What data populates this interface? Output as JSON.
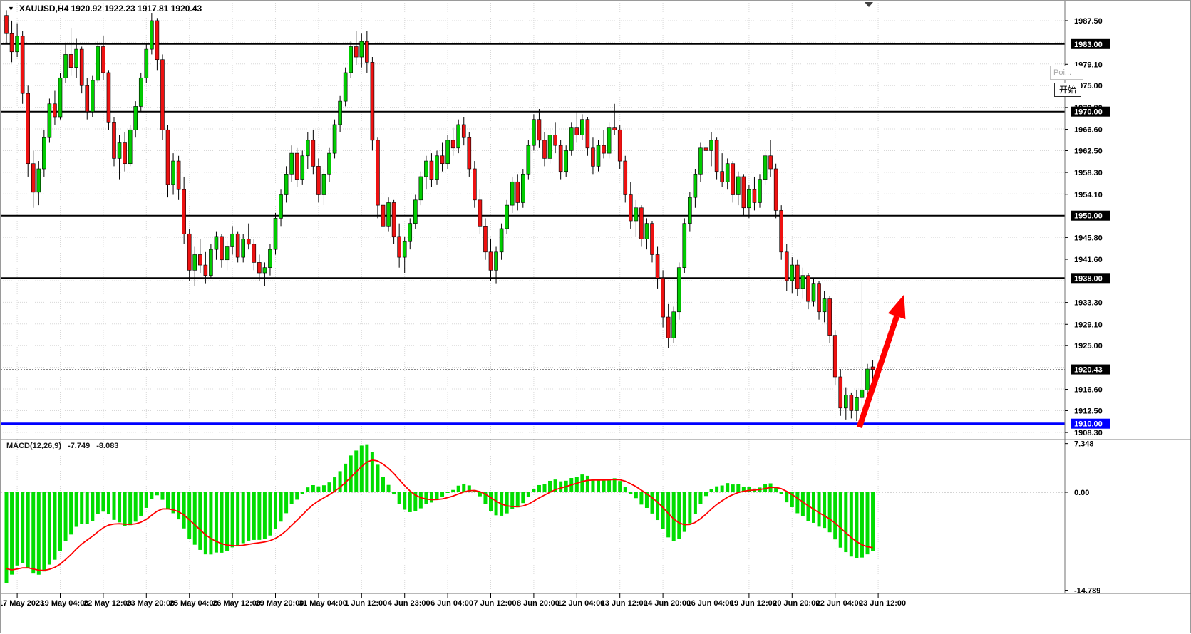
{
  "header": {
    "dropdown_icon": "▼",
    "title": "XAUUSD,H4 1920.92 1922.23 1917.81 1920.43"
  },
  "overlays": {
    "tooltip": "Poi...",
    "start_button": "开始"
  },
  "macd_panel": {
    "label": "MACD(12,26,9)",
    "main_value": "-7.749",
    "signal_value": "-8.083"
  },
  "colors": {
    "bull": "#00CC00",
    "bear": "#EE1111",
    "wick": "#000000",
    "hist": "#00DD00",
    "signal": "#FF0000",
    "arrow": "#FF0000",
    "hline_black": "#000000",
    "hline_blue": "#0000FF",
    "badge_current_bg": "#000000",
    "grid": "#d8d8d8"
  },
  "chart_data": {
    "type": "candlestick",
    "symbol": "XAUUSD",
    "timeframe": "H4",
    "current_ohlc": {
      "open": 1920.92,
      "high": 1922.23,
      "low": 1917.81,
      "close": 1920.43
    },
    "candles": [
      [
        1988.5,
        1989.5,
        1983,
        1985
      ],
      [
        1985,
        1987.5,
        1979.5,
        1981.5
      ],
      [
        1981.5,
        1987,
        1980.5,
        1984.5
      ],
      [
        1984.5,
        1985.5,
        1971.5,
        1973.5
      ],
      [
        1973.5,
        1975,
        1957.5,
        1960
      ],
      [
        1960,
        1962.5,
        1951.5,
        1954.5
      ],
      [
        1954.5,
        1960.5,
        1952,
        1959
      ],
      [
        1959,
        1966.5,
        1957.5,
        1965
      ],
      [
        1965,
        1972.5,
        1964,
        1971.5
      ],
      [
        1971.5,
        1974,
        1967.5,
        1969
      ],
      [
        1969,
        1977.5,
        1968.5,
        1976.5
      ],
      [
        1976.5,
        1983,
        1975.5,
        1981
      ],
      [
        1981,
        1986,
        1977,
        1978.5
      ],
      [
        1978.5,
        1984,
        1976.5,
        1982
      ],
      [
        1982,
        1982.5,
        1973.5,
        1975
      ],
      [
        1975,
        1976.5,
        1968.5,
        1970
      ],
      [
        1970,
        1977,
        1969,
        1976
      ],
      [
        1976,
        1983.5,
        1975.5,
        1982.5
      ],
      [
        1982.5,
        1984.5,
        1976,
        1977.5
      ],
      [
        1977.5,
        1978,
        1966.5,
        1968
      ],
      [
        1968,
        1969,
        1959.5,
        1961
      ],
      [
        1961,
        1965.5,
        1957,
        1964
      ],
      [
        1964,
        1966,
        1958.5,
        1960
      ],
      [
        1960,
        1967.5,
        1959.5,
        1966.5
      ],
      [
        1966.5,
        1972,
        1965,
        1971
      ],
      [
        1971,
        1977.5,
        1970,
        1976.5
      ],
      [
        1976.5,
        1983,
        1975.5,
        1982
      ],
      [
        1982,
        1989,
        1981,
        1987.5
      ],
      [
        1987.5,
        1988,
        1978,
        1980
      ],
      [
        1980,
        1981,
        1964.5,
        1966.5
      ],
      [
        1966.5,
        1967.5,
        1953.5,
        1956
      ],
      [
        1956,
        1962,
        1954,
        1960.5
      ],
      [
        1960.5,
        1961.5,
        1953,
        1955
      ],
      [
        1955,
        1957.5,
        1944.5,
        1946.5
      ],
      [
        1946.5,
        1947.5,
        1937.5,
        1939.5
      ],
      [
        1939.5,
        1944,
        1936.5,
        1942.5
      ],
      [
        1942.5,
        1945.5,
        1939,
        1940.5
      ],
      [
        1940.5,
        1943,
        1937,
        1938.5
      ],
      [
        1938.5,
        1944.5,
        1938,
        1943.5
      ],
      [
        1943.5,
        1947,
        1941.5,
        1946
      ],
      [
        1946,
        1946.5,
        1940,
        1941.5
      ],
      [
        1941.5,
        1945,
        1939.5,
        1944
      ],
      [
        1944,
        1948,
        1942.5,
        1946.5
      ],
      [
        1946.5,
        1947,
        1941,
        1942
      ],
      [
        1942,
        1946.5,
        1941,
        1945.5
      ],
      [
        1945.5,
        1948.5,
        1943.5,
        1944.5
      ],
      [
        1944.5,
        1945.5,
        1939.5,
        1941
      ],
      [
        1941,
        1942.5,
        1937.5,
        1939
      ],
      [
        1939,
        1941,
        1936.5,
        1940
      ],
      [
        1940,
        1944.5,
        1938.5,
        1943.5
      ],
      [
        1943.5,
        1950.5,
        1942.5,
        1949.5
      ],
      [
        1949.5,
        1955,
        1948,
        1954
      ],
      [
        1954,
        1959.5,
        1952.5,
        1958
      ],
      [
        1958,
        1963.5,
        1956.5,
        1962
      ],
      [
        1962,
        1963,
        1955.5,
        1957
      ],
      [
        1957,
        1962.5,
        1956,
        1961.5
      ],
      [
        1961.5,
        1966,
        1959,
        1964.5
      ],
      [
        1964.5,
        1966.5,
        1958,
        1959.5
      ],
      [
        1959.5,
        1961,
        1952.5,
        1954
      ],
      [
        1954,
        1959,
        1952,
        1958
      ],
      [
        1958,
        1963,
        1956.5,
        1962
      ],
      [
        1962,
        1968.5,
        1961,
        1967.5
      ],
      [
        1967.5,
        1973,
        1966,
        1972
      ],
      [
        1972,
        1978.5,
        1971,
        1977.5
      ],
      [
        1977.5,
        1983.5,
        1976.5,
        1982.5
      ],
      [
        1982.5,
        1985.5,
        1979,
        1980.5
      ],
      [
        1980.5,
        1985,
        1978.5,
        1983.5
      ],
      [
        1983.5,
        1985.5,
        1977.5,
        1979.5
      ],
      [
        1979.5,
        1980.5,
        1962.5,
        1964.5
      ],
      [
        1964.5,
        1965,
        1949.5,
        1952
      ],
      [
        1952,
        1956.5,
        1946,
        1948
      ],
      [
        1948,
        1953.5,
        1947,
        1952.5
      ],
      [
        1952.5,
        1953,
        1944.5,
        1946
      ],
      [
        1946,
        1948.5,
        1940,
        1942
      ],
      [
        1942,
        1946,
        1939,
        1945
      ],
      [
        1945,
        1949.5,
        1943.5,
        1948.5
      ],
      [
        1948.5,
        1954,
        1947.5,
        1953
      ],
      [
        1953,
        1958.5,
        1952,
        1957.5
      ],
      [
        1957.5,
        1961.5,
        1955,
        1960.5
      ],
      [
        1960.5,
        1962,
        1955.5,
        1957
      ],
      [
        1957,
        1962.5,
        1956,
        1961.5
      ],
      [
        1961.5,
        1964,
        1958.5,
        1960
      ],
      [
        1960,
        1965.5,
        1959,
        1964.5
      ],
      [
        1964.5,
        1967,
        1961.5,
        1963
      ],
      [
        1963,
        1968.5,
        1962,
        1967.5
      ],
      [
        1967.5,
        1969,
        1963.5,
        1965
      ],
      [
        1965,
        1966,
        1957.5,
        1959
      ],
      [
        1959,
        1960.5,
        1951.5,
        1953
      ],
      [
        1953,
        1955,
        1946.5,
        1948
      ],
      [
        1948,
        1949.5,
        1941.5,
        1943
      ],
      [
        1943,
        1945.5,
        1937.5,
        1939.5
      ],
      [
        1939.5,
        1944,
        1937,
        1943
      ],
      [
        1943,
        1948.5,
        1941.5,
        1947.5
      ],
      [
        1947.5,
        1953,
        1946.5,
        1952
      ],
      [
        1952,
        1957.5,
        1950.5,
        1956.5
      ],
      [
        1956.5,
        1958,
        1951,
        1952.5
      ],
      [
        1952.5,
        1959,
        1951.5,
        1958
      ],
      [
        1958,
        1964.5,
        1957,
        1963.5
      ],
      [
        1963.5,
        1969.5,
        1962.5,
        1968.5
      ],
      [
        1968.5,
        1970.5,
        1963,
        1964.5
      ],
      [
        1964.5,
        1966,
        1959.5,
        1961
      ],
      [
        1961,
        1966.5,
        1960,
        1965.5
      ],
      [
        1965.5,
        1968,
        1962,
        1963.5
      ],
      [
        1963.5,
        1964.5,
        1957,
        1958.5
      ],
      [
        1958.5,
        1963.5,
        1957.5,
        1962.5
      ],
      [
        1962.5,
        1968,
        1961.5,
        1967
      ],
      [
        1967,
        1970,
        1964,
        1965.5
      ],
      [
        1965.5,
        1969.5,
        1964.5,
        1968.5
      ],
      [
        1968.5,
        1969,
        1961.5,
        1963
      ],
      [
        1963,
        1965,
        1958,
        1959.5
      ],
      [
        1959.5,
        1964.5,
        1958.5,
        1963.5
      ],
      [
        1963.5,
        1966.5,
        1961,
        1962
      ],
      [
        1962,
        1968,
        1961,
        1967
      ],
      [
        1967,
        1971.5,
        1965.5,
        1966.5
      ],
      [
        1966.5,
        1967.5,
        1959,
        1960.5
      ],
      [
        1960.5,
        1961.5,
        1952.5,
        1954
      ],
      [
        1954,
        1956.5,
        1947.5,
        1949
      ],
      [
        1949,
        1953,
        1946,
        1951.5
      ],
      [
        1951.5,
        1952,
        1944,
        1945.5
      ],
      [
        1945.5,
        1949.5,
        1943.5,
        1948.5
      ],
      [
        1948.5,
        1949,
        1941,
        1942.5
      ],
      [
        1942.5,
        1944,
        1936,
        1938
      ],
      [
        1938,
        1939.5,
        1928.5,
        1930.5
      ],
      [
        1930.5,
        1933,
        1924.5,
        1926.5
      ],
      [
        1926.5,
        1932.5,
        1925.5,
        1931.5
      ],
      [
        1931.5,
        1941,
        1930,
        1940
      ],
      [
        1940,
        1949.5,
        1939,
        1948.5
      ],
      [
        1948.5,
        1954.5,
        1947,
        1953.5
      ],
      [
        1953.5,
        1959,
        1951.5,
        1958
      ],
      [
        1958,
        1964,
        1956.5,
        1963
      ],
      [
        1963,
        1968.5,
        1961,
        1962.5
      ],
      [
        1962.5,
        1966,
        1959.5,
        1964.5
      ],
      [
        1964.5,
        1965,
        1957,
        1958.5
      ],
      [
        1958.5,
        1962,
        1955.5,
        1956.5
      ],
      [
        1956.5,
        1961,
        1955,
        1960
      ],
      [
        1960,
        1960.5,
        1952.5,
        1954
      ],
      [
        1954,
        1958.5,
        1952,
        1957.5
      ],
      [
        1957.5,
        1958,
        1950,
        1951.5
      ],
      [
        1951.5,
        1956,
        1949.5,
        1955
      ],
      [
        1955,
        1957.5,
        1951,
        1952.5
      ],
      [
        1952.5,
        1958,
        1951.5,
        1957
      ],
      [
        1957,
        1962.5,
        1956,
        1961.5
      ],
      [
        1961.5,
        1964.5,
        1957.5,
        1959
      ],
      [
        1959,
        1960,
        1949.5,
        1951
      ],
      [
        1951,
        1952,
        1941.5,
        1943
      ],
      [
        1943,
        1944.5,
        1935.5,
        1937.5
      ],
      [
        1937.5,
        1942,
        1935,
        1940.5
      ],
      [
        1940.5,
        1941.5,
        1934.5,
        1936
      ],
      [
        1936,
        1940,
        1934,
        1938.5
      ],
      [
        1938.5,
        1939,
        1932,
        1933.5
      ],
      [
        1933.5,
        1938,
        1932.5,
        1937
      ],
      [
        1937,
        1937.5,
        1930,
        1931.5
      ],
      [
        1931.5,
        1935.5,
        1929.5,
        1934
      ],
      [
        1934,
        1934.5,
        1925.5,
        1927
      ],
      [
        1927,
        1928,
        1917.5,
        1919
      ],
      [
        1919,
        1920.5,
        1911.5,
        1913
      ],
      [
        1913,
        1917,
        1910.8,
        1915.5
      ],
      [
        1915.5,
        1916,
        1911,
        1912.5
      ],
      [
        1912.5,
        1916.5,
        1910.5,
        1915
      ],
      [
        1915,
        1937.3,
        1913,
        1916.5
      ],
      [
        1916.5,
        1921.5,
        1915,
        1920.5
      ],
      [
        1920.92,
        1922.23,
        1917.81,
        1920.43
      ]
    ],
    "time_labels": [
      {
        "text": "17 May 2023",
        "i": 2
      },
      {
        "text": "19 May 04:00",
        "i": 10
      },
      {
        "text": "22 May 12:00",
        "i": 18
      },
      {
        "text": "23 May 20:00",
        "i": 26
      },
      {
        "text": "25 May 04:00",
        "i": 34
      },
      {
        "text": "26 May 12:00",
        "i": 42
      },
      {
        "text": "29 May 20:00",
        "i": 50
      },
      {
        "text": "31 May 04:00",
        "i": 58
      },
      {
        "text": "1 Jun 12:00",
        "i": 66
      },
      {
        "text": "4 Jun 23:00",
        "i": 74
      },
      {
        "text": "6 Jun 04:00",
        "i": 82
      },
      {
        "text": "7 Jun 12:00",
        "i": 90
      },
      {
        "text": "8 Jun 20:00",
        "i": 98
      },
      {
        "text": "12 Jun 04:00",
        "i": 106
      },
      {
        "text": "13 Jun 12:00",
        "i": 114
      },
      {
        "text": "14 Jun 20:00",
        "i": 122
      },
      {
        "text": "16 Jun 04:00",
        "i": 130
      },
      {
        "text": "19 Jun 12:00",
        "i": 138
      },
      {
        "text": "20 Jun 20:00",
        "i": 146
      },
      {
        "text": "22 Jun 04:00",
        "i": 154
      },
      {
        "text": "23 Jun 12:00",
        "i": 162
      }
    ],
    "price_hlines": [
      {
        "price": 1983.0,
        "label": "1983.00",
        "color": "#000000",
        "width": 2
      },
      {
        "price": 1970.0,
        "label": "1970.00",
        "color": "#000000",
        "width": 2
      },
      {
        "price": 1950.0,
        "label": "1950.00",
        "color": "#000000",
        "width": 2
      },
      {
        "price": 1938.0,
        "label": "1938.00",
        "color": "#000000",
        "width": 2
      },
      {
        "price": 1910.0,
        "label": "1910.00",
        "color": "#0000FF",
        "width": 3
      }
    ],
    "current_price_line": {
      "price": 1920.43,
      "label": "1920.43"
    },
    "price_axis_labels": [
      "1987.50",
      "1979.10",
      "1975.00",
      "1970.80",
      "1966.60",
      "1962.50",
      "1958.30",
      "1954.10",
      "1945.80",
      "1941.60",
      "1933.30",
      "1929.10",
      "1925.00",
      "1916.60",
      "1912.50",
      "1908.30"
    ],
    "grid": {
      "price_start": 1987.5,
      "price_step": 4.1667,
      "count": 20
    },
    "macd": {
      "label": "MACD(12,26,9)",
      "value_main": "-7.749",
      "value_signal": "-8.083",
      "periods": {
        "fast": 12,
        "slow": 26,
        "signal": 9
      },
      "seeds": {
        "fast": 1977,
        "slow": 1992.5,
        "signal": -11
      },
      "axis": [
        {
          "text": "7.348",
          "value": 7.348
        },
        {
          "text": "0.00",
          "value": 0
        },
        {
          "text": "-14.789",
          "value": -14.789
        }
      ]
    },
    "arrow": {
      "from": {
        "index": 158.5,
        "price": 1909.3
      },
      "to": {
        "index": 166.8,
        "price": 1934.8
      }
    }
  }
}
